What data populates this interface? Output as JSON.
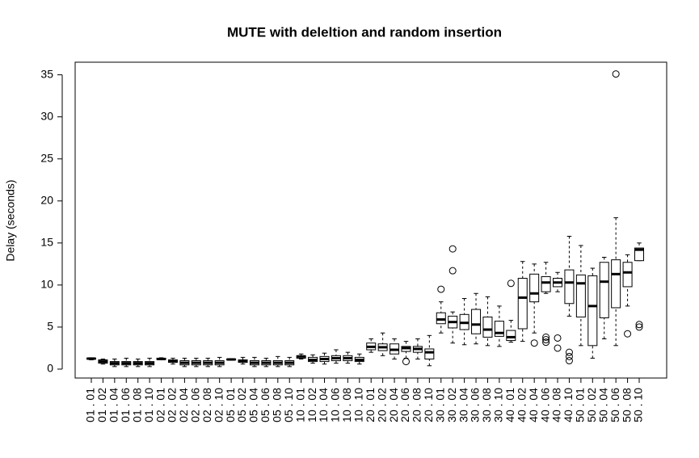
{
  "chart_data": {
    "type": "boxplot",
    "title": "MUTE with deleltion and random insertion",
    "ylabel": "Delay (seconds)",
    "categories": [
      "01 . 01",
      "01 . 02",
      "01 . 04",
      "01 . 06",
      "01 . 08",
      "01 . 10",
      "02 . 01",
      "02 . 02",
      "02 . 04",
      "02 . 06",
      "02 . 08",
      "02 . 10",
      "05 . 01",
      "05 . 02",
      "05 . 04",
      "05 . 06",
      "05 . 08",
      "05 . 10",
      "10 . 01",
      "10 . 02",
      "10 . 04",
      "10 . 06",
      "10 . 08",
      "10 . 10",
      "20 . 01",
      "20 . 02",
      "20 . 04",
      "20 . 06",
      "20 . 08",
      "20 . 10",
      "30 . 01",
      "30 . 02",
      "30 . 04",
      "30 . 06",
      "30 . 08",
      "30 . 10",
      "40 . 01",
      "40 . 02",
      "40 . 04",
      "40 . 06",
      "40 . 08",
      "40 . 10",
      "50 . 01",
      "50 . 02",
      "50 . 04",
      "50 . 06",
      "50 . 08",
      "50 . 10"
    ],
    "boxes": [
      {
        "whislo": 1.1,
        "q1": 1.2,
        "med": 1.25,
        "q3": 1.3,
        "whishi": 1.35,
        "fliers": []
      },
      {
        "whislo": 0.6,
        "q1": 0.7,
        "med": 0.9,
        "q3": 1.1,
        "whishi": 1.2,
        "fliers": []
      },
      {
        "whislo": 0.3,
        "q1": 0.5,
        "med": 0.7,
        "q3": 0.9,
        "whishi": 1.2,
        "fliers": []
      },
      {
        "whislo": 0.3,
        "q1": 0.5,
        "med": 0.7,
        "q3": 0.9,
        "whishi": 1.3,
        "fliers": []
      },
      {
        "whislo": 0.3,
        "q1": 0.5,
        "med": 0.7,
        "q3": 0.9,
        "whishi": 1.2,
        "fliers": []
      },
      {
        "whislo": 0.3,
        "q1": 0.5,
        "med": 0.7,
        "q3": 0.9,
        "whishi": 1.3,
        "fliers": []
      },
      {
        "whislo": 1.1,
        "q1": 1.15,
        "med": 1.2,
        "q3": 1.3,
        "whishi": 1.35,
        "fliers": []
      },
      {
        "whislo": 0.6,
        "q1": 0.8,
        "med": 0.95,
        "q3": 1.1,
        "whishi": 1.3,
        "fliers": []
      },
      {
        "whislo": 0.3,
        "q1": 0.5,
        "med": 0.75,
        "q3": 1.0,
        "whishi": 1.3,
        "fliers": []
      },
      {
        "whislo": 0.3,
        "q1": 0.5,
        "med": 0.75,
        "q3": 1.0,
        "whishi": 1.3,
        "fliers": []
      },
      {
        "whislo": 0.3,
        "q1": 0.5,
        "med": 0.75,
        "q3": 1.0,
        "whishi": 1.3,
        "fliers": []
      },
      {
        "whislo": 0.3,
        "q1": 0.5,
        "med": 0.75,
        "q3": 1.0,
        "whishi": 1.4,
        "fliers": []
      },
      {
        "whislo": 1.05,
        "q1": 1.1,
        "med": 1.15,
        "q3": 1.2,
        "whishi": 1.25,
        "fliers": []
      },
      {
        "whislo": 0.6,
        "q1": 0.8,
        "med": 0.95,
        "q3": 1.1,
        "whishi": 1.4,
        "fliers": []
      },
      {
        "whislo": 0.3,
        "q1": 0.5,
        "med": 0.75,
        "q3": 1.0,
        "whishi": 1.4,
        "fliers": []
      },
      {
        "whislo": 0.3,
        "q1": 0.5,
        "med": 0.75,
        "q3": 1.0,
        "whishi": 1.3,
        "fliers": []
      },
      {
        "whislo": 0.3,
        "q1": 0.5,
        "med": 0.75,
        "q3": 1.0,
        "whishi": 1.5,
        "fliers": []
      },
      {
        "whislo": 0.3,
        "q1": 0.5,
        "med": 0.75,
        "q3": 1.0,
        "whishi": 1.4,
        "fliers": []
      },
      {
        "whislo": 1.2,
        "q1": 1.3,
        "med": 1.5,
        "q3": 1.6,
        "whishi": 1.8,
        "fliers": []
      },
      {
        "whislo": 0.7,
        "q1": 0.9,
        "med": 1.1,
        "q3": 1.4,
        "whishi": 1.7,
        "fliers": []
      },
      {
        "whislo": 0.6,
        "q1": 0.9,
        "med": 1.2,
        "q3": 1.5,
        "whishi": 1.9,
        "fliers": []
      },
      {
        "whislo": 0.7,
        "q1": 1.0,
        "med": 1.3,
        "q3": 1.6,
        "whishi": 2.3,
        "fliers": []
      },
      {
        "whislo": 0.7,
        "q1": 1.0,
        "med": 1.3,
        "q3": 1.6,
        "whishi": 2.0,
        "fliers": []
      },
      {
        "whislo": 0.6,
        "q1": 0.9,
        "med": 1.1,
        "q3": 1.4,
        "whishi": 1.8,
        "fliers": []
      },
      {
        "whislo": 2.0,
        "q1": 2.3,
        "med": 2.65,
        "q3": 3.1,
        "whishi": 3.6,
        "fliers": []
      },
      {
        "whislo": 1.6,
        "q1": 2.2,
        "med": 2.6,
        "q3": 3.0,
        "whishi": 4.3,
        "fliers": []
      },
      {
        "whislo": 1.2,
        "q1": 1.8,
        "med": 2.3,
        "q3": 3.0,
        "whishi": 3.6,
        "fliers": []
      },
      {
        "whislo": 1.3,
        "q1": 2.1,
        "med": 2.5,
        "q3": 2.7,
        "whishi": 3.3,
        "fliers": [
          0.9
        ]
      },
      {
        "whislo": 1.2,
        "q1": 2.0,
        "med": 2.4,
        "q3": 2.7,
        "whishi": 3.6,
        "fliers": []
      },
      {
        "whislo": 0.4,
        "q1": 1.2,
        "med": 2.0,
        "q3": 2.4,
        "whishi": 4.0,
        "fliers": []
      },
      {
        "whislo": 4.3,
        "q1": 5.4,
        "med": 5.9,
        "q3": 6.7,
        "whishi": 8.0,
        "fliers": [
          9.5
        ]
      },
      {
        "whislo": 3.1,
        "q1": 4.9,
        "med": 5.6,
        "q3": 6.3,
        "whishi": 6.8,
        "fliers": [
          11.7,
          14.3
        ]
      },
      {
        "whislo": 2.9,
        "q1": 4.7,
        "med": 5.5,
        "q3": 6.5,
        "whishi": 8.4,
        "fliers": []
      },
      {
        "whislo": 3.0,
        "q1": 4.2,
        "med": 5.3,
        "q3": 7.1,
        "whishi": 9.0,
        "fliers": []
      },
      {
        "whislo": 2.8,
        "q1": 3.8,
        "med": 4.7,
        "q3": 6.2,
        "whishi": 8.6,
        "fliers": []
      },
      {
        "whislo": 2.7,
        "q1": 3.9,
        "med": 4.3,
        "q3": 5.7,
        "whishi": 7.5,
        "fliers": []
      },
      {
        "whislo": 3.2,
        "q1": 3.4,
        "med": 3.8,
        "q3": 4.6,
        "whishi": 5.8,
        "fliers": [
          10.2
        ]
      },
      {
        "whislo": 3.3,
        "q1": 4.8,
        "med": 8.5,
        "q3": 10.8,
        "whishi": 12.8,
        "fliers": []
      },
      {
        "whislo": 4.3,
        "q1": 8.0,
        "med": 9.0,
        "q3": 11.3,
        "whishi": 12.5,
        "fliers": [
          3.1
        ]
      },
      {
        "whislo": 9.0,
        "q1": 9.2,
        "med": 10.3,
        "q3": 11.0,
        "whishi": 12.7,
        "fliers": [
          3.2,
          3.5,
          3.8
        ]
      },
      {
        "whislo": 9.2,
        "q1": 9.8,
        "med": 10.3,
        "q3": 10.8,
        "whishi": 11.5,
        "fliers": [
          2.5,
          3.7
        ]
      },
      {
        "whislo": 6.3,
        "q1": 7.8,
        "med": 10.3,
        "q3": 11.8,
        "whishi": 15.8,
        "fliers": [
          1.0,
          1.5,
          2.0
        ]
      },
      {
        "whislo": 2.8,
        "q1": 6.2,
        "med": 10.2,
        "q3": 11.2,
        "whishi": 14.7,
        "fliers": []
      },
      {
        "whislo": 1.3,
        "q1": 2.8,
        "med": 7.5,
        "q3": 11.1,
        "whishi": 12.0,
        "fliers": []
      },
      {
        "whislo": 3.6,
        "q1": 6.1,
        "med": 10.4,
        "q3": 12.7,
        "whishi": 13.3,
        "fliers": []
      },
      {
        "whislo": 2.8,
        "q1": 7.3,
        "med": 11.3,
        "q3": 13.0,
        "whishi": 18.0,
        "fliers": [
          35.1
        ]
      },
      {
        "whislo": 7.5,
        "q1": 9.8,
        "med": 11.5,
        "q3": 12.7,
        "whishi": 13.6,
        "fliers": [
          4.2
        ]
      },
      {
        "whislo": 12.9,
        "q1": 12.9,
        "med": 14.2,
        "q3": 14.4,
        "whishi": 15.0,
        "fliers": [
          5.0,
          5.3
        ]
      }
    ],
    "ylim": [
      -1.06,
      36.5
    ],
    "yticks": [
      0,
      5,
      10,
      15,
      20,
      25,
      30,
      35
    ]
  }
}
